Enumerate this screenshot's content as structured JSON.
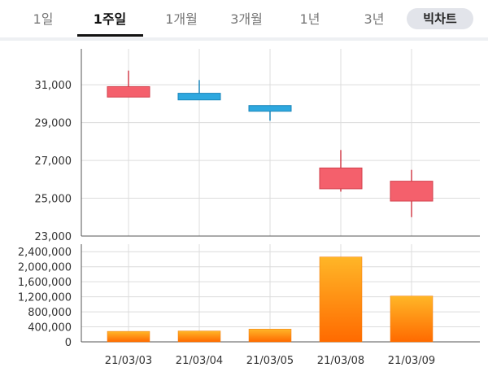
{
  "tabs": [
    {
      "label": "1일",
      "active": false
    },
    {
      "label": "1주일",
      "active": true
    },
    {
      "label": "1개월",
      "active": false
    },
    {
      "label": "3개월",
      "active": false
    },
    {
      "label": "1년",
      "active": false
    },
    {
      "label": "3년",
      "active": false
    }
  ],
  "bigchart_label": "빅차트",
  "chart_data": [
    {
      "type": "candlestick",
      "title": "",
      "categories": [
        "21/03/03",
        "21/03/04",
        "21/03/05",
        "21/03/08",
        "21/03/09"
      ],
      "open": [
        30350,
        30550,
        29900,
        25500,
        24850
      ],
      "close": [
        30900,
        30200,
        29600,
        26600,
        25900
      ],
      "high": [
        31750,
        31250,
        29900,
        27550,
        26500
      ],
      "low": [
        30350,
        30200,
        29100,
        25350,
        24000
      ],
      "up_color": "#f4606c",
      "down_color": "#2ea8df",
      "yticks": [
        "31,000",
        "29,000",
        "27,000",
        "25,000",
        "23,000"
      ],
      "ytick_values": [
        31000,
        29000,
        27000,
        25000,
        23000
      ],
      "ylim": [
        23000,
        32900
      ]
    },
    {
      "type": "bar",
      "title": "",
      "categories": [
        "21/03/03",
        "21/03/04",
        "21/03/05",
        "21/03/08",
        "21/03/09"
      ],
      "values": [
        280000,
        290000,
        340000,
        2260000,
        1220000
      ],
      "bar_color_top": "#ffb627",
      "bar_color_bottom": "#ff6a00",
      "yticks": [
        "2,400,000",
        "2,000,000",
        "1,600,000",
        "1,200,000",
        "800,000",
        "400,000",
        "0"
      ],
      "ytick_values": [
        2400000,
        2000000,
        1600000,
        1200000,
        800000,
        400000,
        0
      ],
      "ylim": [
        0,
        2600000
      ]
    }
  ]
}
